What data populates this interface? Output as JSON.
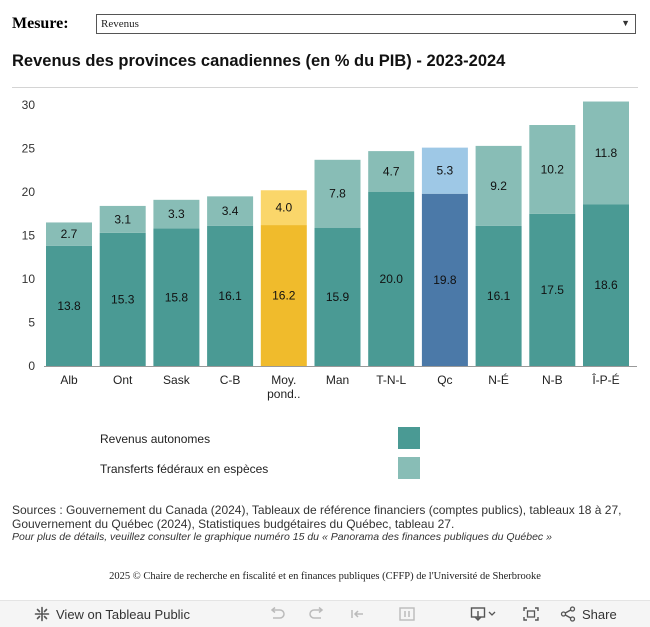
{
  "mesure": {
    "label": "Mesure:",
    "selected": "Revenus"
  },
  "title": "Revenus des provinces canadiennes (en % du PIB) - 2023-2024",
  "chart_data": {
    "type": "bar",
    "stacked": true,
    "title": "Revenus des provinces canadiennes (en % du PIB) - 2023-2024",
    "xlabel": "",
    "ylabel": "",
    "ylim": [
      0,
      30
    ],
    "yticks": [
      0,
      5,
      10,
      15,
      20,
      25,
      30
    ],
    "categories": [
      "Alb",
      "Ont",
      "Sask",
      "C-B",
      "Moy. pond..",
      "Man",
      "T-N-L",
      "Qc",
      "N-É",
      "N-B",
      "Î-P-É"
    ],
    "series": [
      {
        "name": "Revenus autonomes",
        "values": [
          13.8,
          15.3,
          15.8,
          16.1,
          16.2,
          15.9,
          20.0,
          19.8,
          16.1,
          17.5,
          18.6
        ]
      },
      {
        "name": "Transferts fédéraux en espèces",
        "values": [
          2.7,
          3.1,
          3.3,
          3.4,
          4.0,
          7.8,
          4.7,
          5.3,
          9.2,
          10.2,
          11.8
        ]
      }
    ],
    "colors": {
      "autonomes": "#4a9a94",
      "transferts": "#88bdb6",
      "moy_autonomes": "#f0bb2c",
      "moy_transferts": "#fad66a",
      "qc_autonomes": "#4b79a8",
      "qc_transferts": "#9ec8e6"
    },
    "highlight": {
      "Moy. pond..": "moy",
      "Qc": "qc"
    },
    "legend": [
      "Revenus autonomes",
      "Transferts fédéraux en espèces"
    ],
    "grid": false
  },
  "legend": {
    "items": [
      {
        "label": "Revenus autonomes",
        "color": "#4a9a94"
      },
      {
        "label": "Transferts fédéraux en espèces",
        "color": "#88bdb6"
      }
    ]
  },
  "sources": {
    "text": "Sources : Gouvernement du Canada (2024), Tableaux de référence financiers (comptes publics), tableaux 18 à 27, Gouvernement du Québec (2024), Statistiques budgétaires du Québec, tableau 27.",
    "note": "Pour plus de détails, veuillez consulter le graphique numéro 15 du « Panorama des finances publiques du Québec »"
  },
  "copyright": "2025 © Chaire de recherche en fiscalité et en finances publiques (CFFP) de l'Université de Sherbrooke",
  "toolbar": {
    "view_label": "View on Tableau Public",
    "share_label": "Share"
  }
}
